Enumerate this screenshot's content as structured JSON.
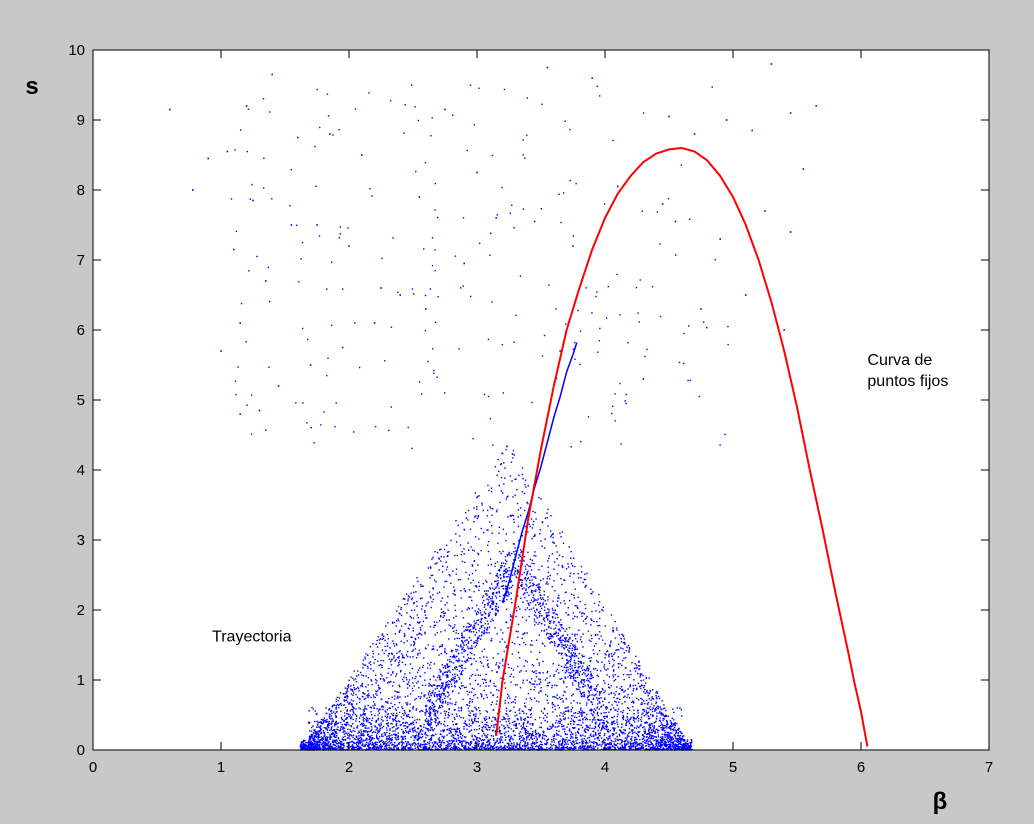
{
  "chart_data": {
    "type": "scatter",
    "title": "",
    "xlabel": "β",
    "ylabel": "s",
    "xlim": [
      0,
      7
    ],
    "ylim": [
      0,
      10
    ],
    "xticks": [
      "0",
      "1",
      "2",
      "3",
      "4",
      "5",
      "6",
      "7"
    ],
    "yticks": [
      "0",
      "1",
      "2",
      "3",
      "4",
      "5",
      "6",
      "7",
      "8",
      "9",
      "10"
    ],
    "grid": false,
    "annotations": [
      {
        "text": "Trayectoria",
        "x": 0.93,
        "y": 1.55
      },
      {
        "text": "Curva de",
        "x": 6.05,
        "y": 5.5
      },
      {
        "text": "puntos fijos",
        "x": 6.05,
        "y": 5.2
      }
    ],
    "series": [
      {
        "kind": "trajectory",
        "color": "#0000ff",
        "x": [
          0.6,
          0.9,
          1.05,
          1.2,
          1.4,
          0.78,
          1.1,
          1.25,
          1.6,
          1.85,
          2.1,
          1.0,
          1.15,
          1.35,
          1.55,
          1.75,
          2.0,
          2.25,
          2.55,
          2.75,
          3.0,
          3.55,
          3.9,
          4.1,
          4.5,
          4.7,
          4.95,
          5.15,
          5.3,
          5.45,
          5.65,
          5.55,
          4.45,
          3.75,
          3.45,
          3.15,
          2.9,
          2.6,
          2.4,
          2.2,
          1.95,
          1.7,
          1.45,
          1.3,
          1.15,
          4.55,
          4.9,
          5.25,
          5.45,
          3.65,
          4.3,
          4.75,
          5.1,
          5.4
        ],
        "y": [
          9.15,
          8.45,
          8.55,
          9.2,
          9.65,
          8.0,
          7.15,
          7.85,
          8.75,
          8.8,
          8.5,
          5.7,
          6.1,
          6.7,
          7.5,
          7.5,
          7.2,
          6.6,
          7.9,
          9.15,
          8.25,
          9.75,
          9.6,
          8.05,
          9.05,
          8.8,
          9.0,
          8.85,
          9.8,
          9.1,
          9.2,
          8.3,
          7.8,
          7.2,
          7.55,
          7.6,
          6.95,
          6.3,
          6.5,
          6.1,
          5.75,
          5.5,
          5.2,
          4.85,
          4.8,
          7.55,
          7.3,
          7.7,
          7.4,
          5.7,
          5.3,
          6.3,
          6.5,
          6.0
        ]
      },
      {
        "kind": "upper branch",
        "color": "#0000ff",
        "x": [
          3.2,
          3.25,
          3.3,
          3.35,
          3.4,
          3.45,
          3.5,
          3.55,
          3.6,
          3.65,
          3.7,
          3.75,
          3.78
        ],
        "y": [
          2.1,
          2.4,
          2.75,
          3.1,
          3.4,
          3.75,
          4.05,
          4.4,
          4.75,
          5.05,
          5.4,
          5.65,
          5.82
        ]
      },
      {
        "kind": "curva de puntos fijos",
        "color": "#ff0000",
        "x": [
          3.15,
          3.2,
          3.3,
          3.4,
          3.5,
          3.6,
          3.7,
          3.8,
          3.9,
          4.0,
          4.1,
          4.2,
          4.3,
          4.4,
          4.5,
          4.6,
          4.7,
          4.8,
          4.9,
          5.0,
          5.1,
          5.2,
          5.3,
          5.4,
          5.5,
          5.6,
          5.7,
          5.8,
          5.9,
          5.95,
          6.0,
          6.03,
          6.05
        ],
        "y": [
          0.2,
          1.0,
          2.1,
          3.3,
          4.3,
          5.2,
          6.0,
          6.6,
          7.15,
          7.6,
          7.95,
          8.2,
          8.4,
          8.52,
          8.58,
          8.6,
          8.55,
          8.42,
          8.2,
          7.9,
          7.5,
          7.0,
          6.4,
          5.7,
          4.9,
          4.0,
          3.15,
          2.25,
          1.4,
          0.95,
          0.55,
          0.25,
          0.05
        ]
      }
    ]
  }
}
